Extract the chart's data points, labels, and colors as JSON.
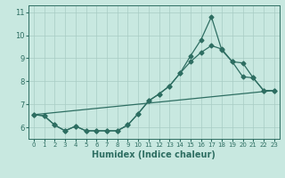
{
  "title": "",
  "xlabel": "Humidex (Indice chaleur)",
  "ylabel": "",
  "bg_color": "#c8e8e0",
  "grid_color": "#a8ccc4",
  "line_color": "#2e6e62",
  "xlim": [
    -0.5,
    23.5
  ],
  "ylim": [
    5.5,
    11.3
  ],
  "xticks": [
    0,
    1,
    2,
    3,
    4,
    5,
    6,
    7,
    8,
    9,
    10,
    11,
    12,
    13,
    14,
    15,
    16,
    17,
    18,
    19,
    20,
    21,
    22,
    23
  ],
  "yticks": [
    6,
    7,
    8,
    9,
    10,
    11
  ],
  "line1_x": [
    0,
    1,
    2,
    3,
    4,
    5,
    6,
    7,
    8,
    9,
    10,
    11,
    12,
    13,
    14,
    15,
    16,
    17,
    18,
    19,
    20,
    21,
    22,
    23
  ],
  "line1_y": [
    6.55,
    6.5,
    6.1,
    5.85,
    6.05,
    5.85,
    5.85,
    5.85,
    5.85,
    6.1,
    6.6,
    7.15,
    7.45,
    7.8,
    8.35,
    8.85,
    9.25,
    9.55,
    9.4,
    8.85,
    8.8,
    8.15,
    7.6,
    7.6
  ],
  "line2_x": [
    0,
    1,
    2,
    3,
    4,
    5,
    6,
    7,
    8,
    9,
    10,
    11,
    12,
    13,
    14,
    15,
    16,
    17,
    18,
    19,
    20,
    21,
    22,
    23
  ],
  "line2_y": [
    6.55,
    6.5,
    6.1,
    5.85,
    6.05,
    5.85,
    5.85,
    5.85,
    5.85,
    6.1,
    6.6,
    7.15,
    7.45,
    7.8,
    8.35,
    9.1,
    9.8,
    10.8,
    9.35,
    8.85,
    8.2,
    8.15,
    7.6,
    7.6
  ],
  "line3_x": [
    0,
    23
  ],
  "line3_y": [
    6.55,
    7.6
  ],
  "marker_style": "D",
  "marker_size": 2.5,
  "line_width": 0.9
}
